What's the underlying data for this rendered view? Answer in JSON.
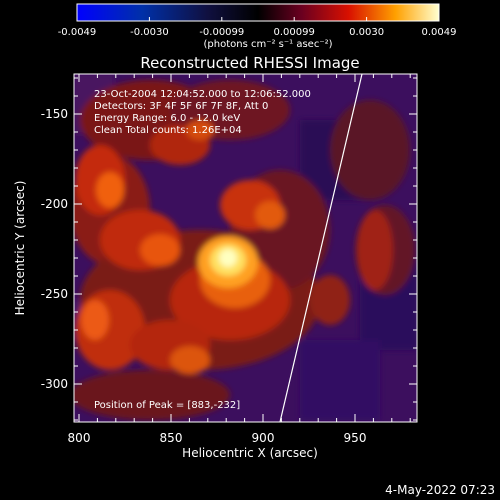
{
  "colorbar": {
    "tick_labels": [
      "-0.0049",
      "-0.0030",
      "-0.00099",
      "0.00099",
      "0.0030",
      "0.0049"
    ],
    "units_label": "(photons cm⁻² s⁻¹ asec⁻²)"
  },
  "image": {
    "title": "Reconstructed RHESSI Image",
    "info_lines": [
      "23-Oct-2004 12:04:52.000 to 12:06:52.000",
      "Detectors: 3F 4F 5F 6F 7F 8F, Att 0",
      "Energy Range: 6.0 - 12.0 keV",
      "Clean     Total counts: 1.26E+04"
    ],
    "peak_text": "Position of Peak = [883,-232]"
  },
  "axes": {
    "x_label": "Heliocentric X (arcsec)",
    "y_label": "Heliocentric Y (arcsec)",
    "x_ticks": [
      "800",
      "850",
      "900",
      "950"
    ],
    "y_ticks": [
      "-150",
      "-200",
      "-250",
      "-300"
    ]
  },
  "footer": {
    "timestamp": "4-May-2022 07:23"
  },
  "colors": {
    "background": "#000000",
    "axes": "#ffffff",
    "limb": "#ffffff"
  }
}
